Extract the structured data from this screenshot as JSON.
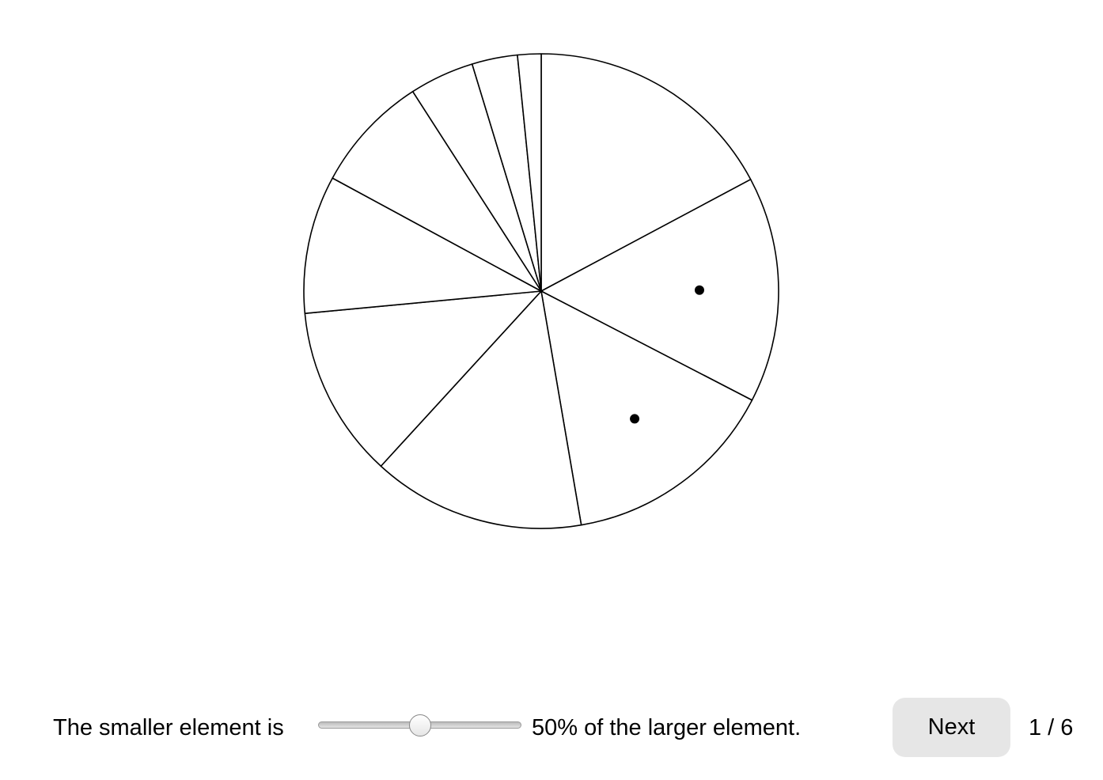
{
  "chart_data": {
    "type": "pie",
    "values": [
      17.2,
      15.4,
      14.7,
      14.5,
      11.7,
      9.4,
      8.0,
      4.4,
      3.1,
      1.6
    ],
    "marked": [
      1,
      2
    ]
  },
  "controls": {
    "prefix": "The smaller element is",
    "slider": {
      "value": 50,
      "min": 0,
      "max": 100,
      "label": "50%"
    },
    "suffix": "of the larger element.",
    "button": "Next",
    "counter": "1 / 6"
  }
}
